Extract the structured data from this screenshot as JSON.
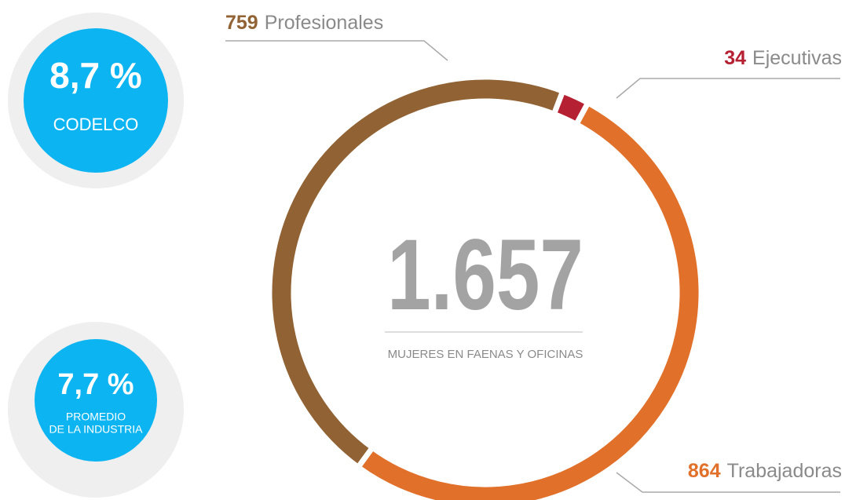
{
  "chart_data": {
    "type": "donut",
    "categories": [
      "Ejecutivas",
      "Trabajadoras",
      "Profesionales"
    ],
    "values": [
      34,
      864,
      759
    ],
    "colors": [
      "#b52032",
      "#e0702a",
      "#916233"
    ],
    "total": {
      "value": 1657,
      "label": "1.657"
    },
    "center_caption": "MUJERES EN FAENAS Y OFICINAS",
    "stats": [
      {
        "value": 8.7,
        "label": "8,7 %",
        "lines": [
          "CODELCO"
        ]
      },
      {
        "value": 7.7,
        "label": "7,7 %",
        "lines": [
          "PROMEDIO",
          "DE LA INDUSTRIA"
        ]
      }
    ]
  }
}
